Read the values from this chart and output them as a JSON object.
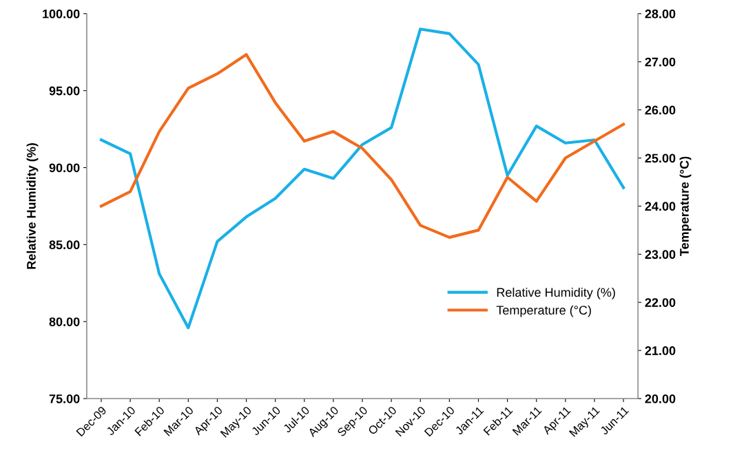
{
  "chart_data": {
    "type": "line",
    "categories": [
      "Dec-09",
      "Jan-10",
      "Feb-10",
      "Mar-10",
      "Apr-10",
      "May-10",
      "Jun-10",
      "Jul-10",
      "Aug-10",
      "Sep-10",
      "Oct-10",
      "Nov-10",
      "Dec-10",
      "Jan-11",
      "Feb-11",
      "Mar-11",
      "Apr-11",
      "May-11",
      "Jun-11"
    ],
    "series": [
      {
        "name": "Relative Humidity (%)",
        "color": "#1ab0e6",
        "values": [
          91.8,
          90.9,
          83.1,
          79.6,
          85.2,
          86.8,
          88.0,
          89.9,
          89.3,
          91.5,
          92.6,
          99.0,
          98.7,
          96.7,
          89.5,
          92.7,
          91.6,
          91.8,
          88.7
        ]
      },
      {
        "name": "Temperature (°C)",
        "color": "#f26b1d",
        "axis": "y2",
        "values": [
          24.0,
          24.3,
          25.55,
          26.45,
          26.75,
          27.15,
          26.15,
          25.35,
          25.55,
          25.2,
          24.55,
          23.6,
          23.35,
          23.5,
          24.6,
          24.1,
          25.0,
          25.35,
          25.7
        ]
      }
    ],
    "ylabel": "Relative Humidity (%)",
    "y2label": "Temperature (°C)",
    "ylim": [
      75,
      100
    ],
    "yticks": [
      {
        "value": 75,
        "label": "75.00"
      },
      {
        "value": 80,
        "label": "80.00"
      },
      {
        "value": 85,
        "label": "85.00"
      },
      {
        "value": 90,
        "label": "90.00"
      },
      {
        "value": 95,
        "label": "95.00"
      },
      {
        "value": 100,
        "label": "100.00"
      }
    ],
    "y2lim": [
      20,
      28
    ],
    "y2ticks": [
      {
        "value": 20,
        "label": "20.00"
      },
      {
        "value": 21,
        "label": "21.00"
      },
      {
        "value": 22,
        "label": "22.00"
      },
      {
        "value": 23,
        "label": "23.00"
      },
      {
        "value": 24,
        "label": "24.00"
      },
      {
        "value": 25,
        "label": "25.00"
      },
      {
        "value": 26,
        "label": "26.00"
      },
      {
        "value": 27,
        "label": "27.00"
      },
      {
        "value": 28,
        "label": "28.00"
      }
    ],
    "grid": false,
    "legend": "center right",
    "marker": "none",
    "line_style": "solid"
  }
}
